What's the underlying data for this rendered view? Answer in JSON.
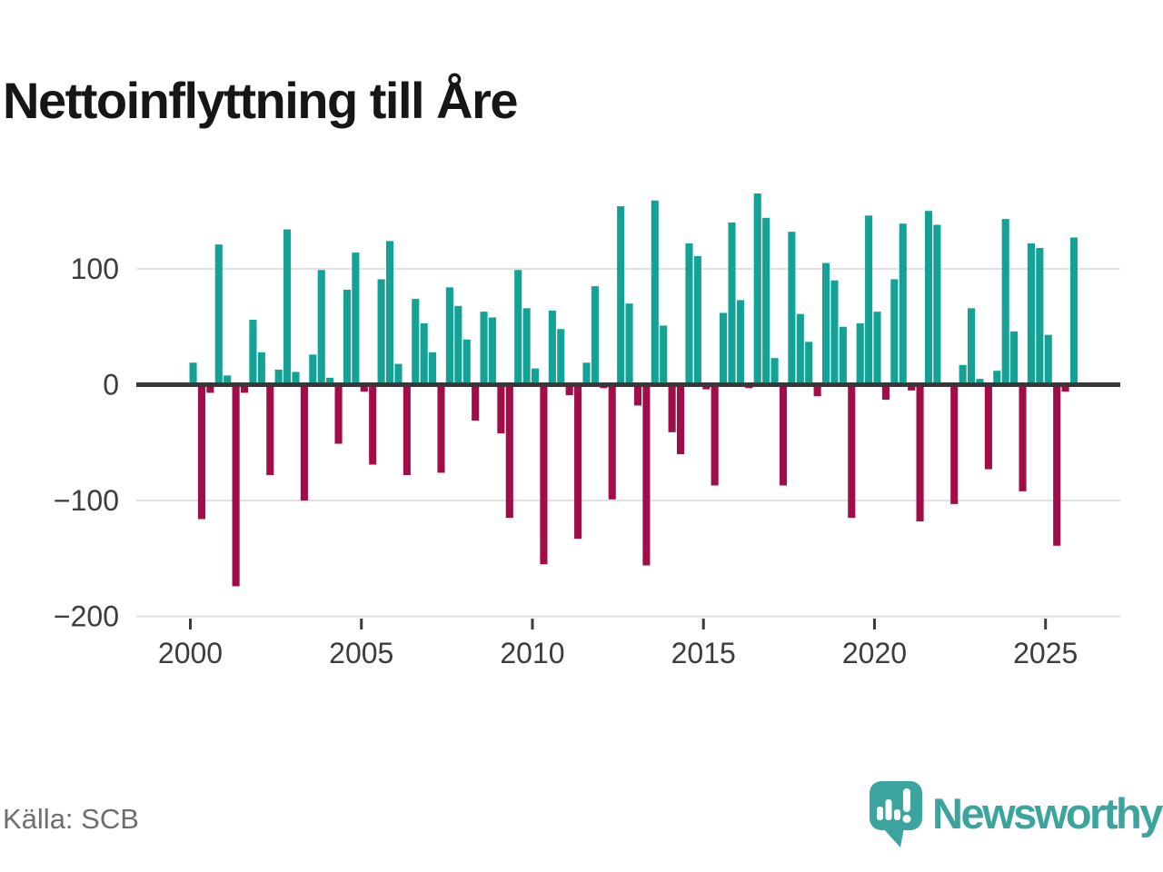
{
  "title": "Nettoinflyttning till Åre",
  "source": "Källa: SCB",
  "brand": {
    "name": "Newsworthy",
    "color": "#3BA49E",
    "icon": "bar-chart-speech-bubble-icon"
  },
  "colors": {
    "positive_bar": "#12A296",
    "negative_bar": "#A20D49",
    "zero_line": "#383838",
    "gridline": "#E1E1E1",
    "axis_text": "#3C3C3C",
    "title_text": "#161616",
    "source_text": "#6E6E6E"
  },
  "chart_data": {
    "type": "bar",
    "title": "Nettoinflyttning till Åre",
    "resolution": "quarterly",
    "x_ticks": [
      2000,
      2005,
      2010,
      2015,
      2020,
      2025
    ],
    "x_tick_labels": [
      "2000",
      "2005",
      "2010",
      "2015",
      "2020",
      "2025"
    ],
    "y_ticks": [
      100,
      0,
      -100,
      -200
    ],
    "y_tick_labels": [
      "100",
      "0",
      "−100",
      "−200"
    ],
    "ylim": [
      -200,
      175
    ],
    "grid": "horizontal",
    "legend": "none",
    "positive_color": "#12A296",
    "negative_color": "#A20D49",
    "values_by_year": {
      "2000": [
        19,
        -116,
        -7,
        121
      ],
      "2001": [
        8,
        -174,
        -7,
        56
      ],
      "2002": [
        28,
        -78,
        13,
        134
      ],
      "2003": [
        11,
        -100,
        26,
        99
      ],
      "2004": [
        6,
        -51,
        82,
        114
      ],
      "2005": [
        -6,
        -69,
        91,
        124
      ],
      "2006": [
        18,
        -78,
        74,
        53
      ],
      "2007": [
        28,
        -76,
        84,
        68
      ],
      "2008": [
        39,
        -31,
        63,
        58
      ],
      "2009": [
        -42,
        -115,
        99,
        66
      ],
      "2010": [
        14,
        -155,
        64,
        48
      ],
      "2011": [
        -9,
        -133,
        19,
        85
      ],
      "2012": [
        -3,
        -99,
        154,
        70
      ],
      "2013": [
        -18,
        -156,
        159,
        51
      ],
      "2014": [
        -41,
        -60,
        122,
        111
      ],
      "2015": [
        -4,
        -87,
        62,
        140
      ],
      "2016": [
        73,
        -3,
        165,
        144
      ],
      "2017": [
        23,
        -87,
        132,
        61
      ],
      "2018": [
        37,
        -10,
        105,
        90
      ],
      "2019": [
        50,
        -115,
        53,
        146
      ],
      "2020": [
        63,
        -13,
        91,
        139
      ],
      "2021": [
        -5,
        -118,
        150,
        138
      ],
      "2022": [
        0,
        -103,
        17,
        66
      ],
      "2023": [
        5,
        -73,
        12,
        143
      ],
      "2024": [
        46,
        -92,
        122,
        118
      ],
      "2025": [
        43,
        -139,
        -6,
        127
      ]
    }
  }
}
